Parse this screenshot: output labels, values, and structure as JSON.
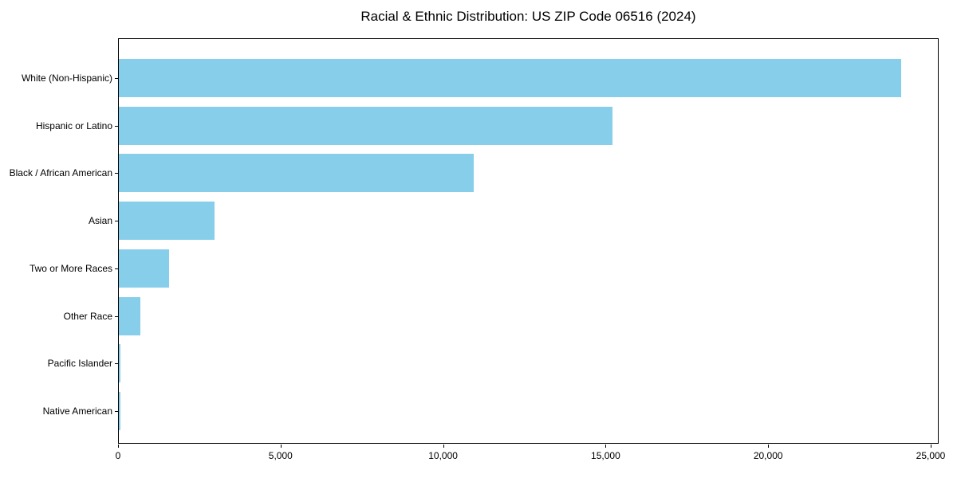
{
  "chart_data": {
    "type": "bar",
    "orientation": "horizontal",
    "title": "Racial & Ethnic Distribution: US ZIP Code 06516 (2024)",
    "categories": [
      "White (Non-Hispanic)",
      "Hispanic or Latino",
      "Black / African American",
      "Asian",
      "Two or More Races",
      "Other Race",
      "Pacific Islander",
      "Native American"
    ],
    "values": [
      24060,
      15180,
      10920,
      2950,
      1550,
      660,
      40,
      55
    ],
    "xlabel": "",
    "ylabel": "",
    "xlim": [
      0,
      25250
    ],
    "xticks": [
      0,
      5000,
      10000,
      15000,
      20000,
      25000
    ],
    "xtick_labels": [
      "0",
      "5,000",
      "10,000",
      "15,000",
      "20,000",
      "25,000"
    ],
    "bar_color": "#87CEEB",
    "background_color": "#ffffff",
    "axis_color": "#000000",
    "grid": false,
    "legend": null
  }
}
